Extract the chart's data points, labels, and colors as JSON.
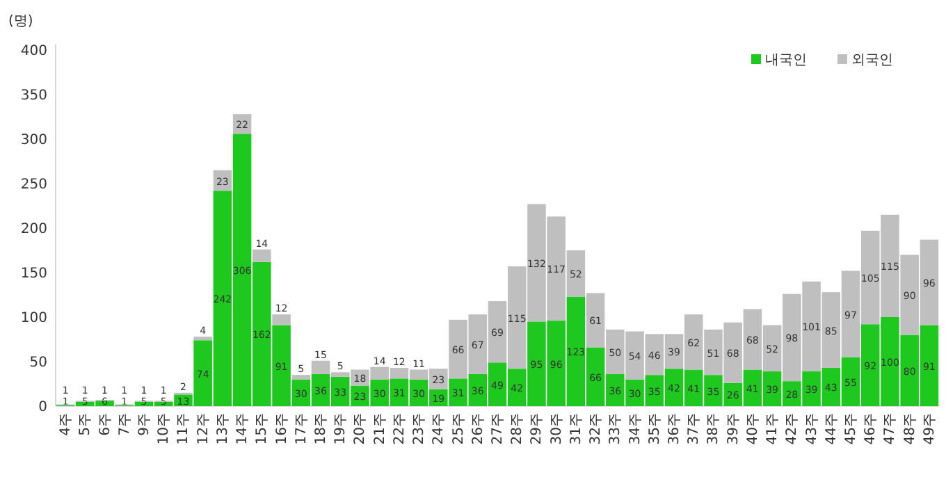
{
  "chart_data": {
    "type": "bar",
    "stacked": true,
    "ylabel": "(명)",
    "ylim": [
      0,
      400
    ],
    "yticks": [
      0,
      50,
      100,
      150,
      200,
      250,
      300,
      350,
      400
    ],
    "grid": false,
    "legend": "top right",
    "data_labels": true,
    "categories": [
      "4주",
      "5주",
      "6주",
      "7주",
      "9주",
      "10주",
      "11주",
      "12주",
      "13주",
      "14주",
      "15주",
      "16주",
      "17주",
      "18주",
      "19주",
      "20주",
      "21주",
      "22주",
      "23주",
      "24주",
      "25주",
      "26주",
      "27주",
      "28주",
      "29주",
      "30주",
      "31주",
      "32주",
      "33주",
      "34주",
      "35주",
      "36주",
      "37주",
      "38주",
      "39주",
      "40주",
      "41주",
      "42주",
      "43주",
      "44주",
      "45주",
      "46주",
      "47주",
      "48주",
      "49주"
    ],
    "series": [
      {
        "name": "내국인",
        "color": "#1ec81e",
        "values": [
          1,
          5,
          6,
          1,
          5,
          5,
          13,
          74,
          242,
          306,
          162,
          91,
          30,
          36,
          33,
          23,
          30,
          31,
          30,
          19,
          31,
          36,
          49,
          42,
          95,
          96,
          123,
          66,
          36,
          30,
          35,
          42,
          41,
          35,
          26,
          41,
          39,
          28,
          39,
          43,
          55,
          92,
          100,
          80,
          91
        ]
      },
      {
        "name": "외국인",
        "color": "#bfbfbf",
        "values": [
          1,
          1,
          1,
          1,
          1,
          1,
          2,
          4,
          23,
          22,
          14,
          12,
          5,
          15,
          5,
          18,
          14,
          12,
          11,
          23,
          66,
          67,
          69,
          115,
          132,
          117,
          52,
          61,
          50,
          54,
          46,
          39,
          62,
          51,
          68,
          68,
          52,
          98,
          101,
          85,
          97,
          105,
          115,
          90,
          96
        ]
      }
    ]
  }
}
